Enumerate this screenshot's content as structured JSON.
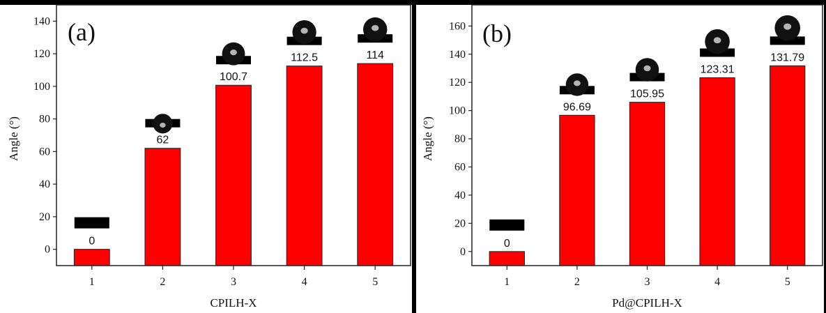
{
  "chart_data": [
    {
      "type": "bar",
      "panel_label": "(a)",
      "categories": [
        "1",
        "2",
        "3",
        "4",
        "5"
      ],
      "values": [
        0,
        62,
        100.7,
        112.5,
        114
      ],
      "data_labels": [
        "0",
        "62",
        "100.7",
        "112.5",
        "114"
      ],
      "xlabel": "CPILH-X",
      "ylabel": "Angle (°)",
      "ylim": [
        -10,
        150
      ],
      "yticks": [
        0,
        20,
        40,
        60,
        80,
        100,
        120,
        140
      ],
      "bar_color": "#ff0000",
      "insets": "water droplet photos above each bar",
      "grid": false
    },
    {
      "type": "bar",
      "panel_label": "(b)",
      "categories": [
        "1",
        "2",
        "3",
        "4",
        "5"
      ],
      "values": [
        0,
        96.69,
        105.95,
        123.31,
        131.79
      ],
      "data_labels": [
        "0",
        "96.69",
        "105.95",
        "123.31",
        "131.79"
      ],
      "xlabel": "Pd@CPILH-X",
      "ylabel": "Angle (°)",
      "ylim": [
        -10,
        175
      ],
      "yticks": [
        0,
        20,
        40,
        60,
        80,
        100,
        120,
        140,
        160
      ],
      "bar_color": "#ff0000",
      "insets": "water droplet photos above each bar",
      "grid": false
    }
  ]
}
